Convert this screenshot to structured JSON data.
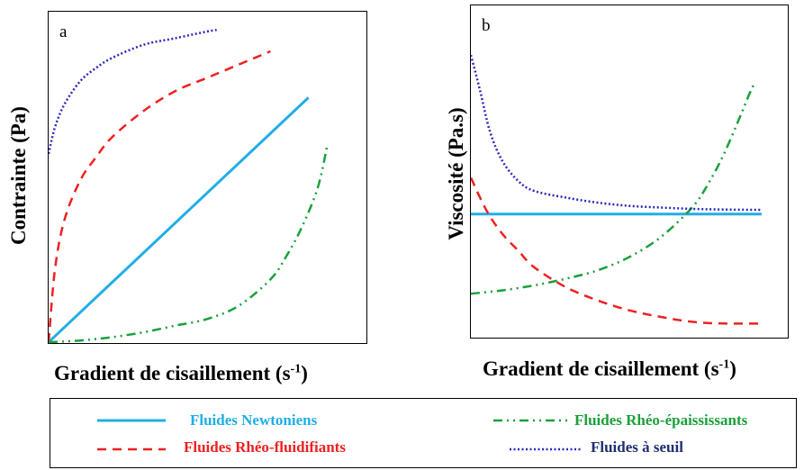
{
  "colors": {
    "newtonian": "#20aee6",
    "shear_thinning": "#ee2020",
    "shear_thickening": "#1aa03a",
    "yield": "#2a2ab8"
  },
  "chart_data": [
    {
      "type": "line",
      "panel": "a",
      "panel_label": "a",
      "xlabel": "Gradient de cisaillement (s-1)",
      "xlabel_main": "Gradient de cisaillement (s",
      "xlabel_sup": "-1",
      "xlabel_close": ")",
      "ylabel": "Contrainte (Pa)",
      "xlim": [
        0,
        1
      ],
      "ylim": [
        0,
        1
      ],
      "series": [
        {
          "key": "newtonian",
          "name": "Fluides Newtoniens",
          "style": "solid",
          "x": [
            0,
            0.82
          ],
          "y": [
            0,
            0.74
          ]
        },
        {
          "key": "shear_thinning",
          "name": "Fluides Rhéo-fluidifiants",
          "style": "dashed",
          "x": [
            0,
            0.02,
            0.05,
            0.1,
            0.15,
            0.2,
            0.3,
            0.4,
            0.5,
            0.6,
            0.7
          ],
          "y": [
            0,
            0.22,
            0.37,
            0.49,
            0.56,
            0.62,
            0.7,
            0.76,
            0.8,
            0.84,
            0.88
          ]
        },
        {
          "key": "shear_thickening",
          "name": "Fluides Rhéo-épaississants",
          "style": "dashdotdot",
          "x": [
            0,
            0.1,
            0.2,
            0.3,
            0.4,
            0.5,
            0.6,
            0.7,
            0.75,
            0.8,
            0.85,
            0.88
          ],
          "y": [
            0,
            0.005,
            0.015,
            0.03,
            0.05,
            0.07,
            0.11,
            0.19,
            0.26,
            0.35,
            0.47,
            0.6
          ]
        },
        {
          "key": "yield",
          "name": "Fluides à seuil",
          "style": "dotted",
          "x": [
            0,
            0.02,
            0.05,
            0.1,
            0.15,
            0.2,
            0.3,
            0.4,
            0.5,
            0.53
          ],
          "y": [
            0.57,
            0.65,
            0.72,
            0.79,
            0.83,
            0.86,
            0.9,
            0.92,
            0.94,
            0.945
          ]
        }
      ]
    },
    {
      "type": "line",
      "panel": "b",
      "panel_label": "b",
      "xlabel": "Gradient de cisaillement (s-1)",
      "xlabel_main": "Gradient de cisaillement (s",
      "xlabel_sup": "-1",
      "xlabel_close": ")",
      "ylabel": "Viscosité (Pa.s)",
      "xlim": [
        0,
        1
      ],
      "ylim": [
        0,
        1
      ],
      "series": [
        {
          "key": "newtonian",
          "name": "Fluides Newtoniens",
          "style": "solid",
          "x": [
            0,
            0.92
          ],
          "y": [
            0.37,
            0.37
          ]
        },
        {
          "key": "shear_thinning",
          "name": "Fluides Rhéo-fluidifiants",
          "style": "dashed",
          "x": [
            0,
            0.05,
            0.1,
            0.15,
            0.2,
            0.3,
            0.4,
            0.5,
            0.6,
            0.7,
            0.8,
            0.92
          ],
          "y": [
            0.48,
            0.38,
            0.31,
            0.26,
            0.21,
            0.15,
            0.11,
            0.08,
            0.06,
            0.045,
            0.04,
            0.04
          ]
        },
        {
          "key": "shear_thickening",
          "name": "Fluides Rhéo-épaississants",
          "style": "dashdotdot",
          "x": [
            0,
            0.1,
            0.2,
            0.3,
            0.4,
            0.5,
            0.6,
            0.7,
            0.75,
            0.8,
            0.85,
            0.88,
            0.9
          ],
          "y": [
            0.13,
            0.14,
            0.155,
            0.175,
            0.2,
            0.24,
            0.3,
            0.39,
            0.46,
            0.55,
            0.66,
            0.73,
            0.77
          ]
        },
        {
          "key": "yield",
          "name": "Fluides à seuil",
          "style": "dotted",
          "x": [
            0,
            0.03,
            0.06,
            0.1,
            0.15,
            0.2,
            0.3,
            0.4,
            0.5,
            0.6,
            0.7,
            0.8,
            0.92
          ],
          "y": [
            0.85,
            0.74,
            0.62,
            0.53,
            0.47,
            0.44,
            0.42,
            0.405,
            0.395,
            0.39,
            0.386,
            0.384,
            0.383
          ]
        }
      ]
    }
  ],
  "legend": {
    "items": [
      {
        "key": "newtonian",
        "label": "Fluides Newtoniens"
      },
      {
        "key": "shear_thinning",
        "label": "Fluides Rhéo-fluidifiants"
      },
      {
        "key": "shear_thickening",
        "label": "Fluides Rhéo-épaississants"
      },
      {
        "key": "yield",
        "label": "Fluides à seuil"
      }
    ]
  }
}
